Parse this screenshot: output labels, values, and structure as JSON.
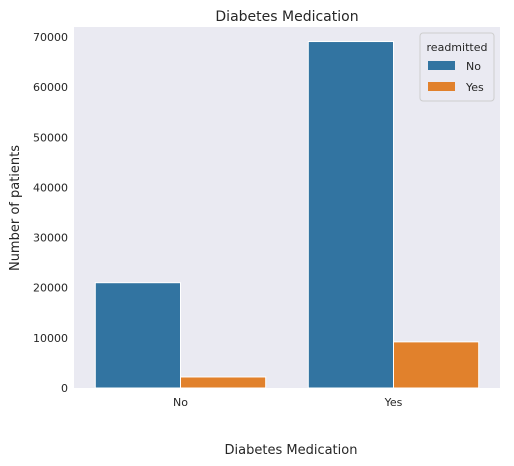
{
  "chart_data": {
    "type": "bar",
    "title": "Diabetes Medication",
    "xlabel": "Diabetes Medication",
    "ylabel": "Number of patients",
    "categories": [
      "No",
      "Yes"
    ],
    "series": [
      {
        "name": "No",
        "values": [
          21000,
          69100
        ],
        "color": "#3274a1"
      },
      {
        "name": "Yes",
        "values": [
          2200,
          9200
        ],
        "color": "#e1812c"
      }
    ],
    "ylim": [
      0,
      72000
    ],
    "yticks": [
      0,
      10000,
      20000,
      30000,
      40000,
      50000,
      60000,
      70000
    ],
    "legend": {
      "title": "readmitted",
      "position": "top-right"
    },
    "grid": false,
    "background": "#eaeaf2"
  }
}
